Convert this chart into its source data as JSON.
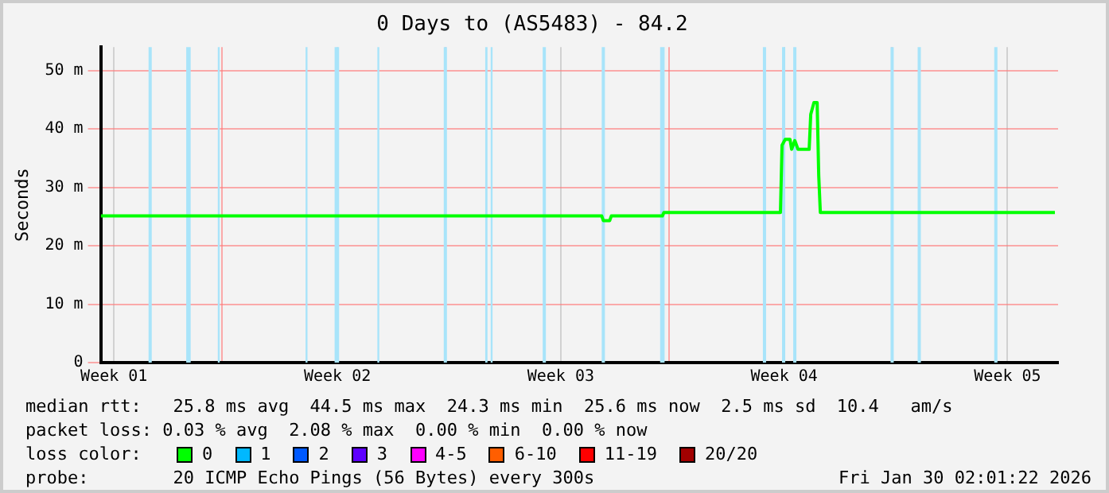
{
  "chart_data": {
    "type": "line",
    "title": "0 Days to (AS5483) - 84.2",
    "ylabel": "Seconds",
    "xlim": [
      "2025-12-31T02:00",
      "2026-01-30T02:00"
    ],
    "xticks": [
      {
        "value": "2025-12-31T12:00",
        "label": "Week 01"
      },
      {
        "value": "2026-01-03T21:12",
        "label": null
      },
      {
        "value": "2026-01-07T12:00",
        "label": "Week 02"
      },
      {
        "value": "2026-01-10T21:12",
        "label": null
      },
      {
        "value": "2026-01-14T12:00",
        "label": "Week 03"
      },
      {
        "value": "2026-01-17T21:12",
        "label": null
      },
      {
        "value": "2026-01-21T12:00",
        "label": "Week 04"
      },
      {
        "value": "2026-01-24T21:12",
        "label": null
      },
      {
        "value": "2026-01-28T12:00",
        "label": "Week 05"
      }
    ],
    "ylim": [
      0,
      54
    ],
    "yticks": [
      0,
      {
        "value": 10,
        "label": "10 m"
      },
      {
        "value": 20,
        "label": "20 m"
      },
      {
        "value": 30,
        "label": "30 m"
      },
      {
        "value": 40,
        "label": "40 m"
      },
      {
        "value": 50,
        "label": "50 m"
      }
    ],
    "grid": true,
    "series": [
      {
        "color": "#00ff00",
        "x": [
          "2025-12-31T02:00",
          "2026-01-15T18:48",
          "2026-01-15T20:00",
          "2026-01-16T00:48",
          "2026-01-16T02:00",
          "2026-01-17T16:24",
          "2026-01-17T17:36",
          "2026-01-21T09:12",
          "2026-01-21T10:24",
          "2026-01-21T12:48",
          "2026-01-21T16:24",
          "2026-01-21T17:36",
          "2026-01-21T20:00",
          "2026-01-21T22:24",
          "2026-01-22T06:48",
          "2026-01-22T08:00",
          "2026-01-22T10:24",
          "2026-01-22T12:48",
          "2026-01-22T14:00",
          "2026-01-22T15:12",
          "2026-01-29T23:36"
        ],
        "values": [
          25.1,
          25.1,
          24.3,
          24.3,
          25.1,
          25.1,
          25.7,
          25.7,
          37.2,
          38.2,
          38.2,
          36.5,
          38,
          36.5,
          36.5,
          42.5,
          44.5,
          44.5,
          32,
          25.7,
          25.7
        ]
      }
    ],
    "bands": [
      {
        "axis": "x",
        "from": "2026-01-01T14:00",
        "to": "2026-01-01T16:24",
        "color": "#a8e4fa"
      },
      {
        "axis": "x",
        "from": "2026-01-02T18:20",
        "to": "2026-01-02T21:40",
        "color": "#a8e4fa"
      },
      {
        "axis": "x",
        "from": "2026-01-03T18:05",
        "to": "2026-01-03T19:31",
        "color": "#a8e4fa"
      },
      {
        "axis": "x",
        "from": "2026-01-06T12:05",
        "to": "2026-01-06T13:31",
        "color": "#a8e4fa"
      },
      {
        "axis": "x",
        "from": "2026-01-07T09:55",
        "to": "2026-01-07T13:17",
        "color": "#a8e4fa"
      },
      {
        "axis": "x",
        "from": "2026-01-08T18:05",
        "to": "2026-01-08T19:31",
        "color": "#a8e4fa"
      },
      {
        "axis": "x",
        "from": "2026-01-10T20:00",
        "to": "2026-01-10T22:24",
        "color": "#a8e4fa"
      },
      {
        "axis": "x",
        "from": "2026-01-12T03:12",
        "to": "2026-01-12T04:53",
        "color": "#a8e4fa"
      },
      {
        "axis": "x",
        "from": "2026-01-12T07:17",
        "to": "2026-01-12T08:43",
        "color": "#a8e4fa"
      },
      {
        "axis": "x",
        "from": "2026-01-13T22:24",
        "to": "2026-01-14T00:48",
        "color": "#a8e4fa"
      },
      {
        "axis": "x",
        "from": "2026-01-15T18:48",
        "to": "2026-01-15T21:12",
        "color": "#a8e4fa"
      },
      {
        "axis": "x",
        "from": "2026-01-17T14:43",
        "to": "2026-01-17T18:05",
        "color": "#a8e4fa"
      },
      {
        "axis": "x",
        "from": "2026-01-20T20:00",
        "to": "2026-01-20T22:24",
        "color": "#a8e4fa"
      },
      {
        "axis": "x",
        "from": "2026-01-21T10:24",
        "to": "2026-01-21T12:48",
        "color": "#a8e4fa"
      },
      {
        "axis": "x",
        "from": "2026-01-21T18:48",
        "to": "2026-01-21T21:12",
        "color": "#a8e4fa"
      },
      {
        "axis": "x",
        "from": "2026-01-24T20:00",
        "to": "2026-01-24T22:24",
        "color": "#a8e4fa"
      },
      {
        "axis": "x",
        "from": "2026-01-25T16:24",
        "to": "2026-01-25T18:48",
        "color": "#a8e4fa"
      },
      {
        "axis": "x",
        "from": "2026-01-28T02:00",
        "to": "2026-01-28T04:24",
        "color": "#a8e4fa"
      }
    ],
    "annotations": [
      "median rtt:   25.8 ms avg  44.5 ms max  24.3 ms min  25.6 ms now  2.5 ms sd  10.4   am/s",
      "packet loss: 0.03 % avg  2.08 % max  0.00 % min  0.00 % now",
      "loss color:",
      "0",
      "1",
      "2",
      "3",
      "4-5",
      "6-10",
      "11-19",
      "20/20",
      "probe:        20 ICMP Echo Pings (56 Bytes) every 300s",
      "Fri Jan 30 02:01:22 2026"
    ]
  }
}
